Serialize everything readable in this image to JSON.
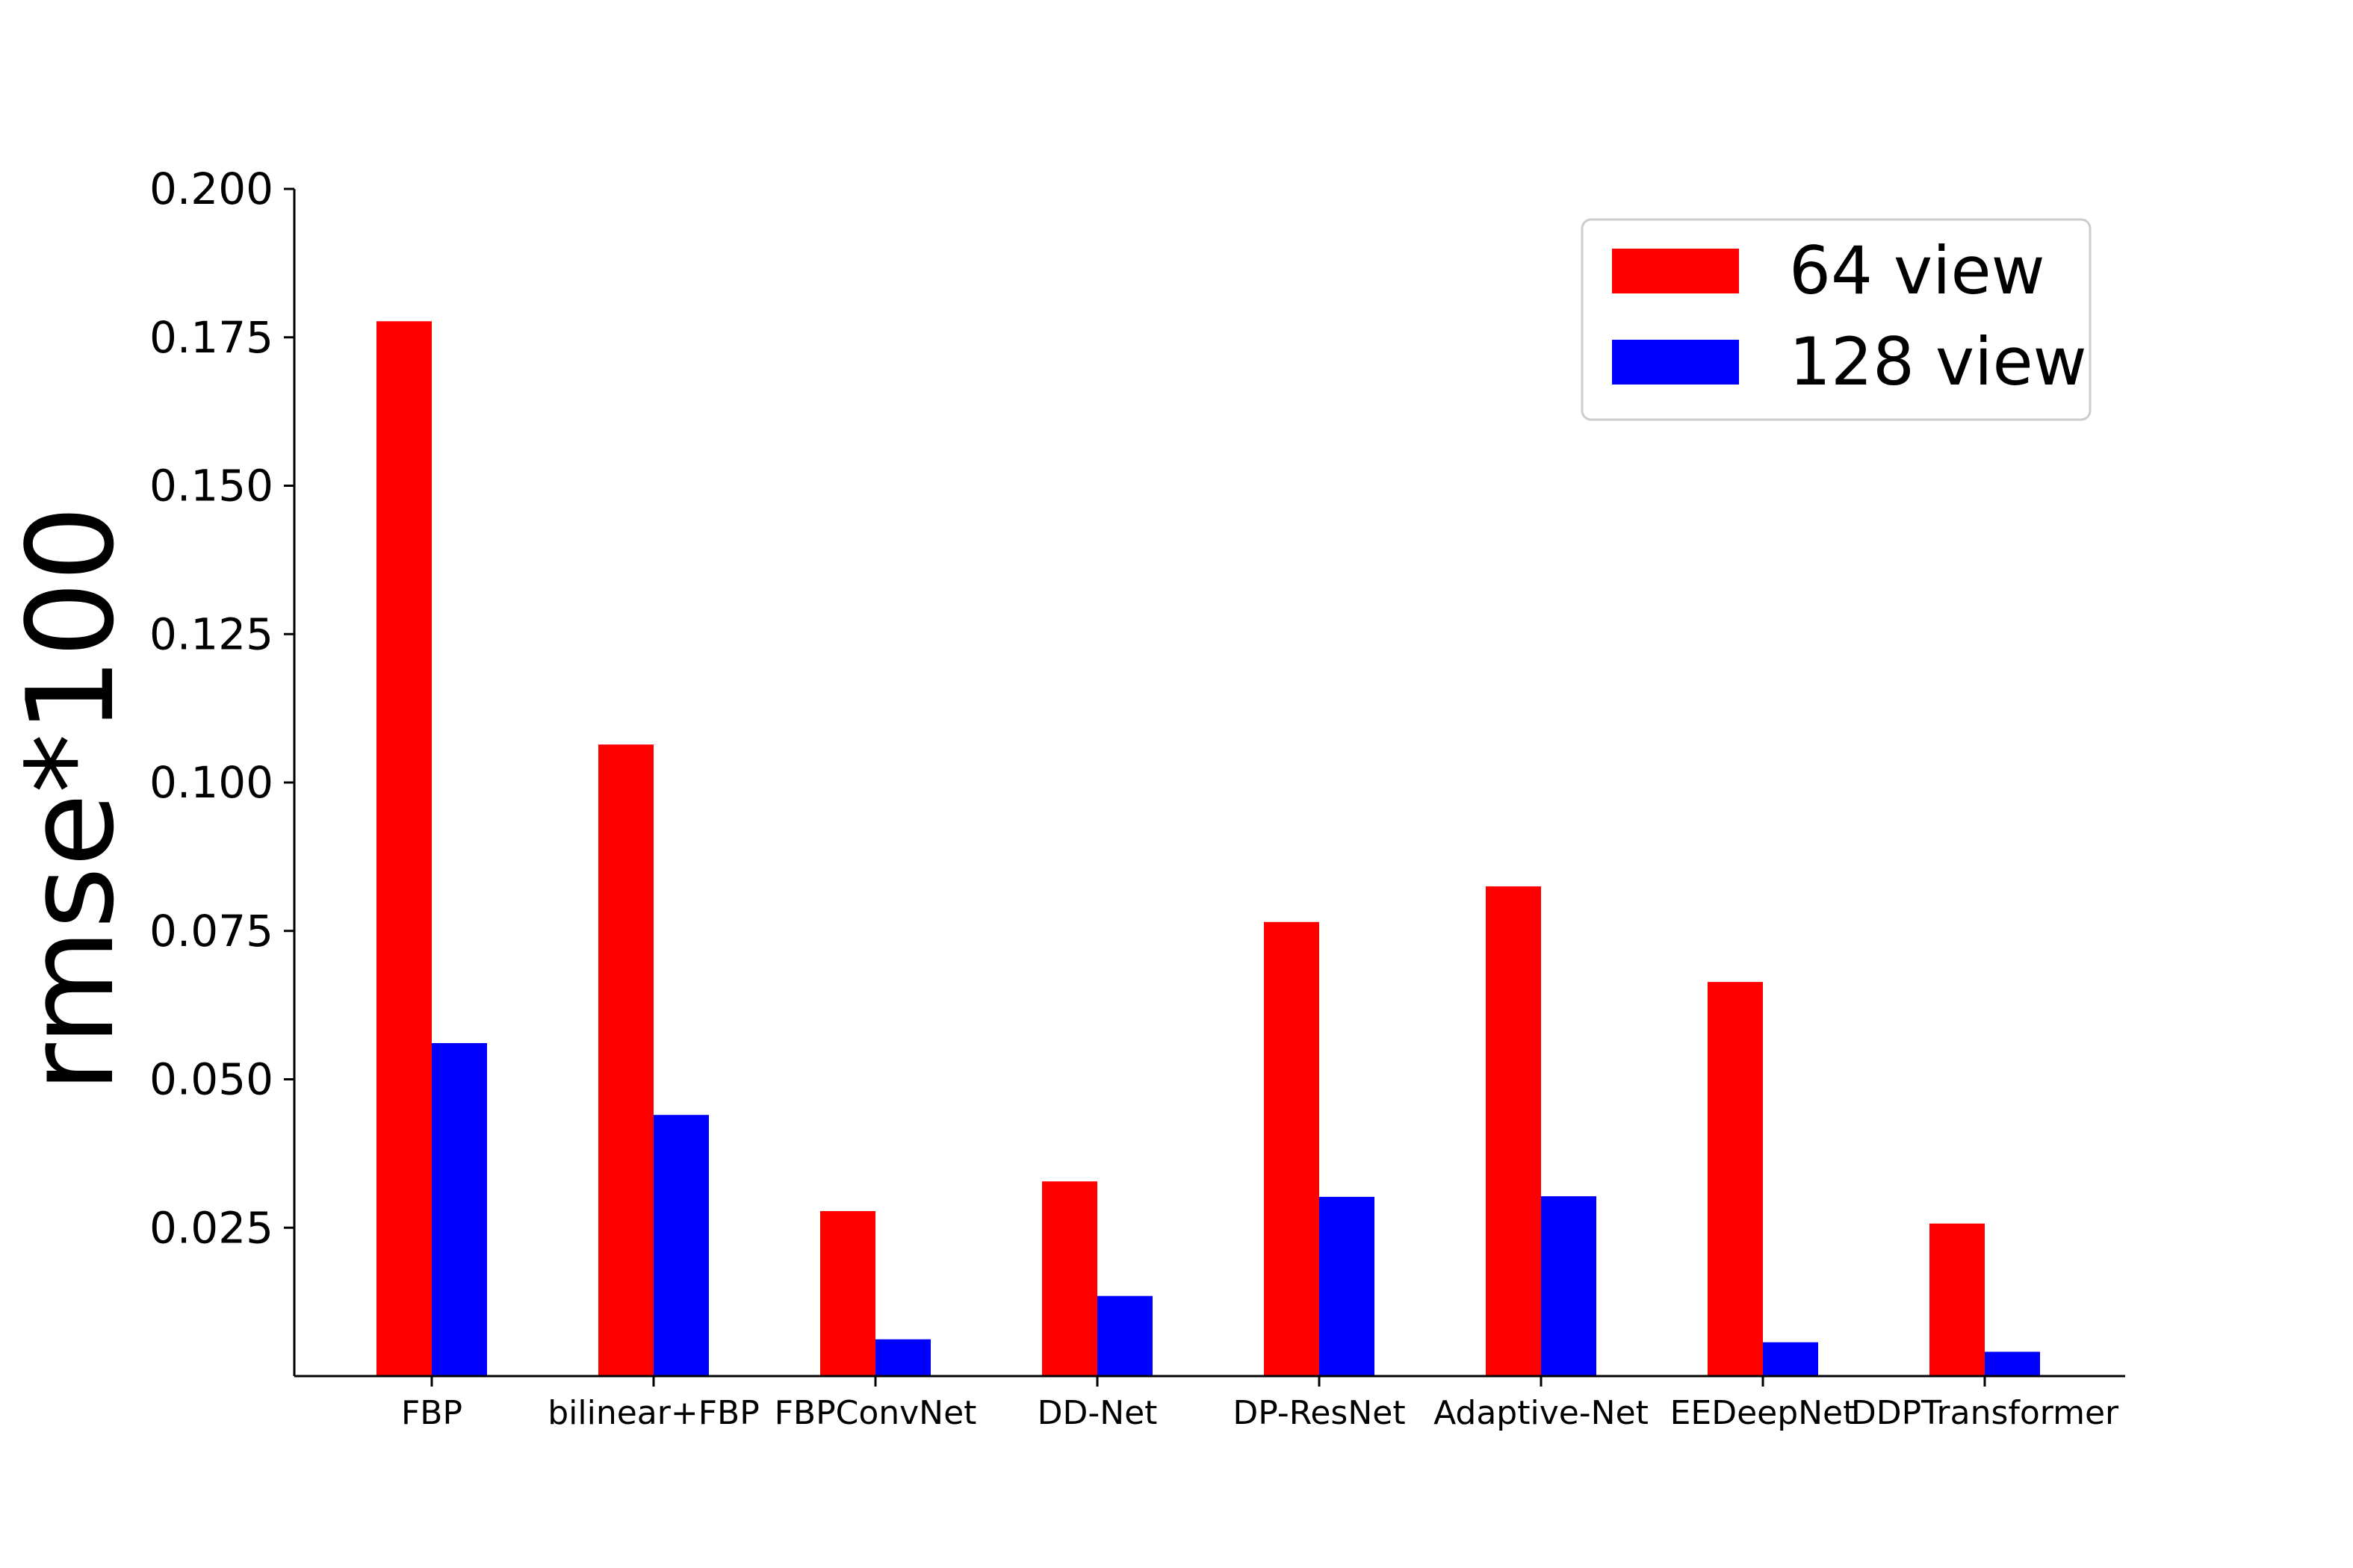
{
  "chart_data": {
    "type": "bar",
    "title": "",
    "xlabel": "",
    "ylabel": "rmse*100",
    "categories": [
      "FBP",
      "bilinear+FBP",
      "FBPConvNet",
      "DD-Net",
      "DP-ResNet",
      "Adaptive-Net",
      "EEDeepNet",
      "DDPTransformer"
    ],
    "series": [
      {
        "name": "64 view",
        "color": "#ff0000",
        "values": [
          0.1777,
          0.1064,
          0.0278,
          0.0328,
          0.0765,
          0.0825,
          0.0664,
          0.0257
        ]
      },
      {
        "name": "128 view",
        "color": "#0000ff",
        "values": [
          0.0561,
          0.044,
          0.0062,
          0.0135,
          0.0302,
          0.0303,
          0.0057,
          0.0041
        ]
      }
    ],
    "ylim": [
      0,
      0.2
    ],
    "yticks": [
      "0.025",
      "0.050",
      "0.075",
      "0.100",
      "0.125",
      "0.150",
      "0.175",
      "0.200"
    ],
    "grid": false,
    "legend_position": "top-right"
  }
}
